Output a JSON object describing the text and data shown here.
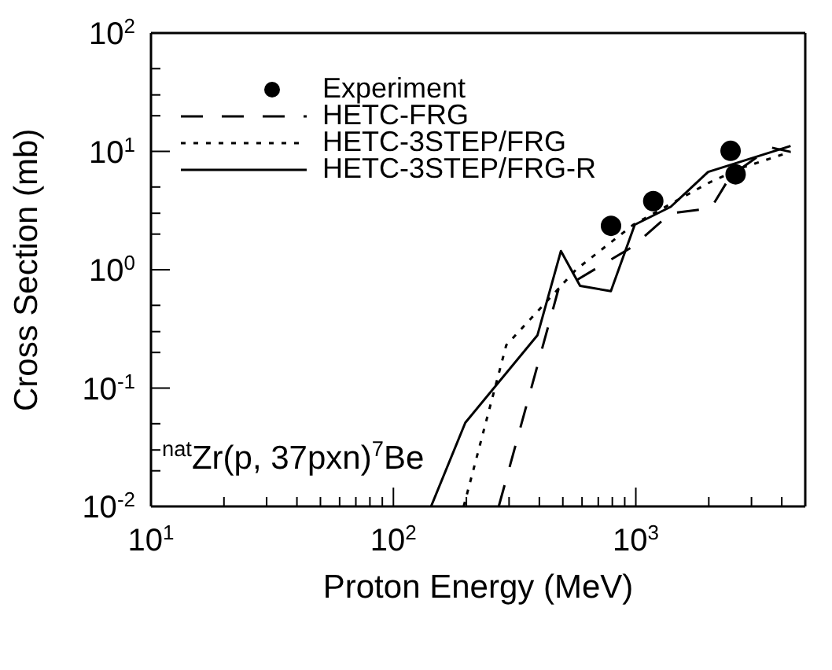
{
  "chart_data": {
    "type": "line",
    "xlabel": "Proton Energy (MeV)",
    "ylabel": "Cross Section (mb)",
    "log": "xy",
    "xlim": [
      10,
      5000
    ],
    "ylim": [
      0.01,
      100
    ],
    "xticks": [
      {
        "value": 10,
        "label": "10$^{1}$"
      },
      {
        "value": 20,
        "label": null
      },
      {
        "value": 30,
        "label": null
      },
      {
        "value": 40,
        "label": null
      },
      {
        "value": 50,
        "label": null
      },
      {
        "value": 60,
        "label": null
      },
      {
        "value": 70,
        "label": null
      },
      {
        "value": 80,
        "label": null
      },
      {
        "value": 90,
        "label": null
      },
      {
        "value": 100,
        "label": "10$^{2}$"
      },
      {
        "value": 200,
        "label": null
      },
      {
        "value": 300,
        "label": null
      },
      {
        "value": 400,
        "label": null
      },
      {
        "value": 500,
        "label": null
      },
      {
        "value": 600,
        "label": null
      },
      {
        "value": 700,
        "label": null
      },
      {
        "value": 800,
        "label": null
      },
      {
        "value": 900,
        "label": null
      },
      {
        "value": 1000,
        "label": "10$^{3}$"
      },
      {
        "value": 2000,
        "label": null
      },
      {
        "value": 3000,
        "label": null
      },
      {
        "value": 4000,
        "label": null
      }
    ],
    "yticks": [
      {
        "value": 0.01,
        "label": "10$^{-2}$"
      },
      {
        "value": 0.02,
        "label": null
      },
      {
        "value": 0.03,
        "label": null
      },
      {
        "value": 0.05,
        "label": null
      },
      {
        "value": 0.1,
        "label": "10$^{-1}$"
      },
      {
        "value": 0.2,
        "label": null
      },
      {
        "value": 0.3,
        "label": null
      },
      {
        "value": 0.5,
        "label": null
      },
      {
        "value": 1,
        "label": "10$^{0}$"
      },
      {
        "value": 2,
        "label": null
      },
      {
        "value": 3,
        "label": null
      },
      {
        "value": 5,
        "label": null
      },
      {
        "value": 10,
        "label": "10$^{1}$"
      },
      {
        "value": 20,
        "label": null
      },
      {
        "value": 30,
        "label": null
      },
      {
        "value": 50,
        "label": null
      },
      {
        "value": 100,
        "label": "10$^{2}$"
      }
    ],
    "legend": "top left",
    "grid": false,
    "annotations": [
      "$^{nat}$Zr(p, 37pxn)$^{7}$Be"
    ],
    "series": [
      {
        "name": "Experiment",
        "type": "scatter",
        "marker": "circle",
        "color": "#000000",
        "x": [
          790,
          1180,
          2460,
          2580
        ],
        "values": [
          2.35,
          3.8,
          10.1,
          6.4
        ]
      },
      {
        "name": "HETC-FRG",
        "line_style": "dashed",
        "color": "#000000",
        "x": [
          272,
          480,
          566,
          977,
          1393,
          2040,
          2460,
          3600,
          4350
        ],
        "values": [
          0.01,
          0.69,
          0.81,
          1.58,
          3.0,
          3.3,
          6.2,
          10.8,
          9.9
        ]
      },
      {
        "name": "HETC-3STEP/FRG",
        "line_style": "dotted",
        "color": "#000000",
        "x": [
          195,
          292,
          566,
          977,
          1393,
          1990,
          2700,
          4350
        ],
        "values": [
          0.01,
          0.23,
          1.0,
          2.4,
          3.6,
          5.4,
          7.2,
          9.9
        ]
      },
      {
        "name": "HETC-3STEP/FRG-R",
        "line_style": "solid",
        "color": "#000000",
        "x": [
          143,
          198,
          393,
          491,
          589,
          789,
          990,
          1393,
          1987,
          4350
        ],
        "values": [
          0.01,
          0.051,
          0.28,
          1.44,
          0.73,
          0.66,
          2.4,
          3.4,
          6.7,
          11.1
        ]
      }
    ]
  }
}
